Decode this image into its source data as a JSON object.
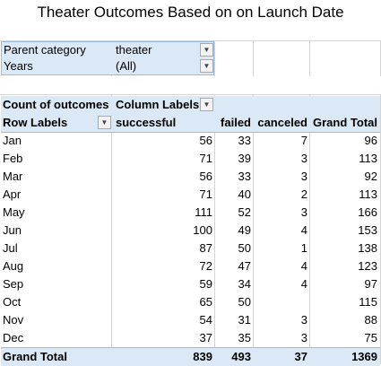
{
  "title": "Theater Outcomes Based on on Launch Date",
  "filters": [
    {
      "label": "Parent category",
      "value": "theater",
      "button_icon": "filter-applied-icon"
    },
    {
      "label": "Years",
      "value": "(All)",
      "button_icon": "dropdown-arrow-icon"
    }
  ],
  "pivot": {
    "values_label": "Count of outcomes",
    "column_labels": "Column Labels",
    "row_labels": "Row Labels",
    "columns": [
      "successful",
      "failed",
      "canceled",
      "Grand Total"
    ],
    "rows": [
      {
        "label": "Jan",
        "values": [
          "56",
          "33",
          "7",
          "96"
        ]
      },
      {
        "label": "Feb",
        "values": [
          "71",
          "39",
          "3",
          "113"
        ]
      },
      {
        "label": "Mar",
        "values": [
          "56",
          "33",
          "3",
          "92"
        ]
      },
      {
        "label": "Apr",
        "values": [
          "71",
          "40",
          "2",
          "113"
        ]
      },
      {
        "label": "May",
        "values": [
          "111",
          "52",
          "3",
          "166"
        ]
      },
      {
        "label": "Jun",
        "values": [
          "100",
          "49",
          "4",
          "153"
        ]
      },
      {
        "label": "Jul",
        "values": [
          "87",
          "50",
          "1",
          "138"
        ]
      },
      {
        "label": "Aug",
        "values": [
          "72",
          "47",
          "4",
          "123"
        ]
      },
      {
        "label": "Sep",
        "values": [
          "59",
          "34",
          "4",
          "97"
        ]
      },
      {
        "label": "Oct",
        "values": [
          "65",
          "50",
          "",
          "115"
        ]
      },
      {
        "label": "Nov",
        "values": [
          "54",
          "31",
          "3",
          "88"
        ]
      },
      {
        "label": "Dec",
        "values": [
          "37",
          "35",
          "3",
          "75"
        ]
      }
    ],
    "grand_total": {
      "label": "Grand Total",
      "values": [
        "839",
        "493",
        "37",
        "1369"
      ]
    }
  }
}
